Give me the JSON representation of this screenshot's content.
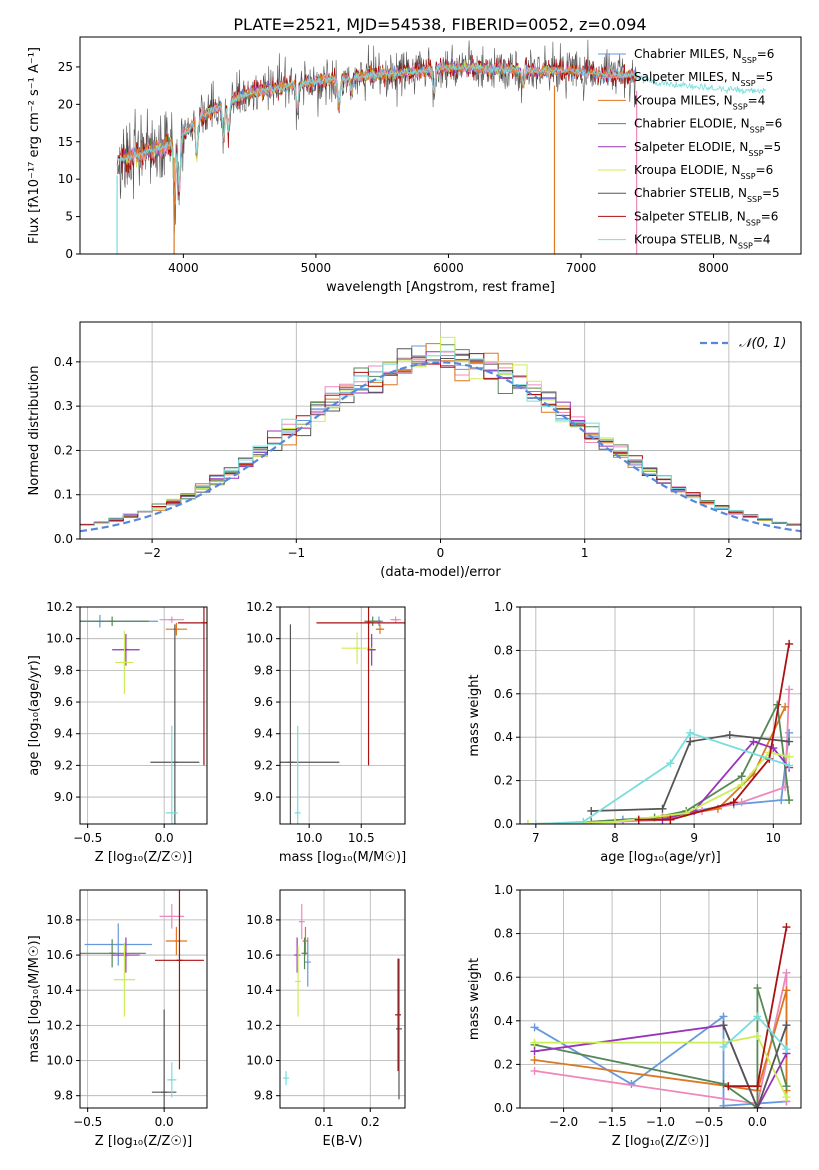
{
  "figure_title": "PLATE=2521, MJD=54538, FIBERID=0052, z=0.094",
  "colors": {
    "Chabrier MILES": "#6699dd",
    "Salpeter MILES": "#ee88bb",
    "Kroupa MILES": "#dd7722",
    "Chabrier ELODIE": "#558855",
    "Salpeter ELODIE": "#9933bb",
    "Kroupa ELODIE": "#ccee55",
    "Chabrier STELIB": "#555555",
    "Salpeter STELIB": "#aa1111",
    "Kroupa STELIB": "#77dddd",
    "normal_curve": "#5588dd"
  },
  "chart_data": [
    {
      "id": "spectrum",
      "type": "line",
      "title": "PLATE=2521, MJD=54538, FIBERID=0052, z=0.094",
      "xlabel": "wavelength [Angstrom, rest frame]",
      "ylabel": "Flux [fλ10⁻¹⁷ erg cm⁻² s⁻¹ A⁻¹]",
      "xlim": [
        3220,
        8660
      ],
      "ylim": [
        0,
        29
      ],
      "xticks": [
        4000,
        5000,
        6000,
        7000,
        8000
      ],
      "yticks": [
        0,
        5,
        10,
        15,
        20,
        25
      ],
      "grid": false,
      "legend_position": "top-right",
      "legend": [
        "Chabrier MILES, N_SSP=6",
        "Salpeter MILES, N_SSP=5",
        "Kroupa MILES, N_SSP=4",
        "Chabrier ELODIE, N_SSP=6",
        "Salpeter ELODIE, N_SSP=5",
        "Kroupa ELODIE, N_SSP=6",
        "Chabrier STELIB, N_SSP=5",
        "Salpeter STELIB, N_SSP=6",
        "Kroupa STELIB, N_SSP=4"
      ],
      "legend_labels": [
        {
          "base": "Chabrier MILES, N",
          "sub": "SSP",
          "tail": "=6"
        },
        {
          "base": "Salpeter MILES, N",
          "sub": "SSP",
          "tail": "=5"
        },
        {
          "base": "Kroupa MILES, N",
          "sub": "SSP",
          "tail": "=4"
        },
        {
          "base": "Chabrier ELODIE, N",
          "sub": "SSP",
          "tail": "=6"
        },
        {
          "base": "Salpeter ELODIE, N",
          "sub": "SSP",
          "tail": "=5"
        },
        {
          "base": "Kroupa ELODIE, N",
          "sub": "SSP",
          "tail": "=6"
        },
        {
          "base": "Chabrier STELIB, N",
          "sub": "SSP",
          "tail": "=5"
        },
        {
          "base": "Salpeter STELIB, N",
          "sub": "SSP",
          "tail": "=6"
        },
        {
          "base": "Kroupa STELIB, N",
          "sub": "SSP",
          "tail": "=4"
        }
      ],
      "continuum_anchors": {
        "wavelength": [
          3500,
          3700,
          3950,
          4100,
          4300,
          4500,
          4800,
          5000,
          5200,
          5500,
          5800,
          6000,
          6300,
          6600,
          6900,
          7200,
          7420,
          7500,
          7800,
          8100,
          8400
        ],
        "flux": [
          12.5,
          13.5,
          15.0,
          18.0,
          20.0,
          21.5,
          22.5,
          23.0,
          23.5,
          24.0,
          24.5,
          25.0,
          24.8,
          24.5,
          24.5,
          24.0,
          23.8,
          23.0,
          22.5,
          22.0,
          21.8
        ]
      },
      "absorption_features": {
        "wavelength": [
          3934,
          3969,
          4102,
          4304,
          4340,
          4861,
          5175,
          5270,
          5890,
          6563
        ],
        "depth": [
          8,
          7,
          5,
          5,
          4,
          3,
          4,
          2,
          3,
          2
        ]
      },
      "spikes": {
        "wavelength": [
          3500,
          3930,
          6800,
          7420
        ],
        "flux": [
          0,
          0,
          0,
          0
        ]
      }
    },
    {
      "id": "residual_hist",
      "type": "histogram",
      "xlabel": "(data-model)/error",
      "ylabel": "Normed distribution",
      "xlim": [
        -2.5,
        2.5
      ],
      "ylim": [
        0,
        0.49
      ],
      "xticks": [
        -2,
        -1,
        0,
        1,
        2
      ],
      "yticks": [
        0.0,
        0.1,
        0.2,
        0.3,
        0.4
      ],
      "grid": true,
      "legend_position": "top-right",
      "legend": [
        "𝒩(0, 1)"
      ],
      "bin_width": 0.1,
      "bin_start": -2.5
    },
    {
      "id": "age_vs_Z",
      "type": "errorbar",
      "xlabel": "Z [log₁₀(Z/Z☉)]",
      "ylabel": "age  [log₁₀(age/yr)]",
      "xlim": [
        -0.55,
        0.28
      ],
      "ylim": [
        8.83,
        10.2
      ],
      "xticks": [
        -0.5,
        0.0
      ],
      "yticks": [
        9.0,
        9.2,
        9.4,
        9.6,
        9.8,
        10.0,
        10.2
      ],
      "grid": true,
      "points": [
        {
          "fit": "Chabrier MILES",
          "x": -0.42,
          "xerr": 0.38,
          "y": 10.11,
          "yerr": 0.04
        },
        {
          "fit": "Salpeter MILES",
          "x": 0.05,
          "xerr": 0.08,
          "y": 10.12,
          "yerr": 0.02
        },
        {
          "fit": "Kroupa MILES",
          "x": 0.08,
          "xerr": 0.07,
          "y": 10.06,
          "yerr": 0.04
        },
        {
          "fit": "Chabrier ELODIE",
          "x": -0.34,
          "xerr": 0.24,
          "y": 10.11,
          "yerr": 0.03
        },
        {
          "fit": "Salpeter ELODIE",
          "x": -0.25,
          "xerr": 0.09,
          "y": 9.93,
          "yerr": 0.1
        },
        {
          "fit": "Kroupa ELODIE",
          "x": -0.26,
          "xerr": 0.06,
          "y": 9.85,
          "yerr": 0.2
        },
        {
          "fit": "Chabrier STELIB",
          "x": 0.07,
          "xerr": 0.16,
          "y": 9.22,
          "yerr": 0.87
        },
        {
          "fit": "Salpeter STELIB",
          "x": 0.26,
          "xerr": 0.17,
          "y": 10.1,
          "yerr": 0.9
        },
        {
          "fit": "Kroupa STELIB",
          "x": 0.05,
          "xerr": 0.04,
          "y": 8.9,
          "yerr": 0.55
        }
      ]
    },
    {
      "id": "age_vs_mass",
      "type": "errorbar",
      "xlabel": "mass [log₁₀(M/M☉)]",
      "ylabel": "",
      "xlim": [
        9.72,
        10.92
      ],
      "ylim": [
        8.83,
        10.2
      ],
      "xticks": [
        10.0,
        10.5
      ],
      "yticks": [
        9.0,
        9.2,
        9.4,
        9.6,
        9.8,
        10.0,
        10.2
      ],
      "grid": true,
      "points": [
        {
          "fit": "Chabrier MILES",
          "x": 10.67,
          "xerr": 0.04,
          "y": 10.11,
          "yerr": 0.03
        },
        {
          "fit": "Salpeter MILES",
          "x": 10.83,
          "xerr": 0.05,
          "y": 10.12,
          "yerr": 0.02
        },
        {
          "fit": "Kroupa MILES",
          "x": 10.68,
          "xerr": 0.04,
          "y": 10.06,
          "yerr": 0.03
        },
        {
          "fit": "Chabrier ELODIE",
          "x": 10.61,
          "xerr": 0.08,
          "y": 10.11,
          "yerr": 0.03
        },
        {
          "fit": "Salpeter ELODIE",
          "x": 10.6,
          "xerr": 0.04,
          "y": 9.93,
          "yerr": 0.1
        },
        {
          "fit": "Kroupa ELODIE",
          "x": 10.46,
          "xerr": 0.15,
          "y": 9.94,
          "yerr": 0.1
        },
        {
          "fit": "Chabrier STELIB",
          "x": 9.82,
          "xerr": 0.47,
          "y": 9.22,
          "yerr": 0.87
        },
        {
          "fit": "Salpeter STELIB",
          "x": 10.57,
          "xerr": 0.5,
          "y": 10.1,
          "yerr": 0.9
        },
        {
          "fit": "Kroupa STELIB",
          "x": 9.89,
          "xerr": 0.02,
          "y": 8.9,
          "yerr": 0.55
        }
      ]
    },
    {
      "id": "weight_vs_age",
      "type": "line",
      "xlabel": "age  [log₁₀(age/yr)]",
      "ylabel": "mass weight",
      "xlim": [
        6.8,
        10.35
      ],
      "ylim": [
        0,
        1.0
      ],
      "xticks": [
        7,
        8,
        9,
        10
      ],
      "yticks": [
        0.0,
        0.2,
        0.4,
        0.6,
        0.8,
        1.0
      ],
      "grid": true,
      "series": [
        {
          "fit": "Chabrier MILES",
          "x": [
            7.7,
            8.1,
            8.6,
            9.0,
            9.5,
            10.1,
            10.2
          ],
          "y": [
            0.01,
            0.02,
            0.03,
            0.06,
            0.09,
            0.11,
            0.42
          ]
        },
        {
          "fit": "Salpeter MILES",
          "x": [
            6.9,
            8.0,
            8.7,
            9.1,
            9.6,
            10.15,
            10.2
          ],
          "y": [
            0.0,
            0.01,
            0.02,
            0.06,
            0.1,
            0.17,
            0.62
          ]
        },
        {
          "fit": "Kroupa MILES",
          "x": [
            7.7,
            8.6,
            9.3,
            9.75,
            10.15
          ],
          "y": [
            0.01,
            0.03,
            0.07,
            0.23,
            0.54
          ]
        },
        {
          "fit": "Chabrier ELODIE",
          "x": [
            7.7,
            8.5,
            8.9,
            9.6,
            10.05,
            10.2
          ],
          "y": [
            0.01,
            0.03,
            0.06,
            0.22,
            0.55,
            0.11
          ]
        },
        {
          "fit": "Salpeter ELODIE",
          "x": [
            8.6,
            9.0,
            9.75,
            10.0,
            10.2
          ],
          "y": [
            0.02,
            0.06,
            0.38,
            0.35,
            0.26
          ]
        },
        {
          "fit": "Kroupa ELODIE",
          "x": [
            6.9,
            8.0,
            8.9,
            9.6,
            9.95,
            10.2
          ],
          "y": [
            0.0,
            0.01,
            0.05,
            0.18,
            0.33,
            0.31
          ]
        },
        {
          "fit": "Chabrier STELIB",
          "x": [
            7.7,
            8.6,
            8.95,
            9.45,
            10.2
          ],
          "y": [
            0.06,
            0.07,
            0.38,
            0.41,
            0.38
          ]
        },
        {
          "fit": "Salpeter STELIB",
          "x": [
            8.3,
            8.7,
            9.5,
            9.95,
            10.2
          ],
          "y": [
            0.02,
            0.02,
            0.1,
            0.3,
            0.83
          ]
        },
        {
          "fit": "Kroupa STELIB",
          "x": [
            7.0,
            7.6,
            8.7,
            8.95,
            10.2
          ],
          "y": [
            0.0,
            0.01,
            0.28,
            0.42,
            0.27
          ]
        }
      ]
    },
    {
      "id": "mass_vs_Z",
      "type": "errorbar",
      "xlabel": "Z [log₁₀(Z/Z☉)]",
      "ylabel": "mass [log₁₀(M/M☉)]",
      "xlim": [
        -0.55,
        0.28
      ],
      "ylim": [
        9.73,
        10.97
      ],
      "xticks": [
        -0.5,
        0.0
      ],
      "yticks": [
        9.8,
        10.0,
        10.2,
        10.4,
        10.6,
        10.8
      ],
      "grid": true,
      "points": [
        {
          "fit": "Chabrier MILES",
          "x": -0.3,
          "xerr": 0.22,
          "y": 10.66,
          "yerr": 0.12
        },
        {
          "fit": "Salpeter MILES",
          "x": 0.05,
          "xerr": 0.08,
          "y": 10.82,
          "yerr": 0.07
        },
        {
          "fit": "Kroupa MILES",
          "x": 0.08,
          "xerr": 0.07,
          "y": 10.68,
          "yerr": 0.08
        },
        {
          "fit": "Chabrier ELODIE",
          "x": -0.34,
          "xerr": 0.22,
          "y": 10.61,
          "yerr": 0.08
        },
        {
          "fit": "Salpeter ELODIE",
          "x": -0.25,
          "xerr": 0.09,
          "y": 10.6,
          "yerr": 0.1
        },
        {
          "fit": "Kroupa ELODIE",
          "x": -0.26,
          "xerr": 0.07,
          "y": 10.46,
          "yerr": 0.21
        },
        {
          "fit": "Chabrier STELIB",
          "x": -0.0,
          "xerr": 0.08,
          "y": 9.82,
          "yerr": 0.47
        },
        {
          "fit": "Salpeter STELIB",
          "x": 0.1,
          "xerr": 0.16,
          "y": 10.57,
          "yerr": 0.62
        },
        {
          "fit": "Kroupa STELIB",
          "x": 0.05,
          "xerr": 0.03,
          "y": 9.89,
          "yerr": 0.1
        }
      ]
    },
    {
      "id": "mass_vs_ebv",
      "type": "errorbar",
      "xlabel": "E(B-V)",
      "ylabel": "",
      "xlim": [
        0.005,
        0.275
      ],
      "ylim": [
        9.73,
        10.97
      ],
      "xticks": [
        0.1,
        0.2
      ],
      "yticks": [
        9.8,
        10.0,
        10.2,
        10.4,
        10.6,
        10.8
      ],
      "grid": true,
      "points": [
        {
          "fit": "Chabrier MILES",
          "x": 0.065,
          "xerr": 0.0,
          "y": 10.56,
          "yerr": 0.14
        },
        {
          "fit": "Salpeter MILES",
          "x": 0.052,
          "xerr": 0.0,
          "y": 10.79,
          "yerr": 0.1
        },
        {
          "fit": "Kroupa MILES",
          "x": 0.06,
          "xerr": 0.0,
          "y": 10.68,
          "yerr": 0.08
        },
        {
          "fit": "Chabrier ELODIE",
          "x": 0.058,
          "xerr": 0.0,
          "y": 10.61,
          "yerr": 0.09
        },
        {
          "fit": "Salpeter ELODIE",
          "x": 0.042,
          "xerr": 0.0,
          "y": 10.6,
          "yerr": 0.1
        },
        {
          "fit": "Kroupa ELODIE",
          "x": 0.044,
          "xerr": 0.0,
          "y": 10.45,
          "yerr": 0.2
        },
        {
          "fit": "Chabrier STELIB",
          "x": 0.262,
          "xerr": 0.0,
          "y": 10.18,
          "yerr": 0.4
        },
        {
          "fit": "Salpeter STELIB",
          "x": 0.26,
          "xerr": 0.0,
          "y": 10.26,
          "yerr": 0.32
        },
        {
          "fit": "Kroupa STELIB",
          "x": 0.018,
          "xerr": 0.0,
          "y": 9.9,
          "yerr": 0.04
        }
      ]
    },
    {
      "id": "weight_vs_Z",
      "type": "line",
      "xlabel": "Z [log₁₀(Z/Z☉)]",
      "ylabel": "mass weight",
      "xlim": [
        -2.45,
        0.45
      ],
      "ylim": [
        0,
        1.0
      ],
      "xticks": [
        -2.0,
        -1.5,
        -1.0,
        -0.5,
        0.0
      ],
      "yticks": [
        0.0,
        0.2,
        0.4,
        0.6,
        0.8,
        1.0
      ],
      "grid": true,
      "series": [
        {
          "fit": "Chabrier MILES",
          "x": [
            -2.3,
            -1.3,
            -0.35,
            -0.35,
            0.3
          ],
          "y": [
            0.37,
            0.11,
            0.42,
            0.01,
            0.03
          ]
        },
        {
          "fit": "Salpeter MILES",
          "x": [
            -2.3,
            0.0,
            0.3,
            0.3
          ],
          "y": [
            0.17,
            0.02,
            0.62,
            0.03
          ]
        },
        {
          "fit": "Kroupa MILES",
          "x": [
            -2.3,
            -0.3,
            0.0,
            0.3,
            0.3
          ],
          "y": [
            0.22,
            0.1,
            0.08,
            0.54,
            0.08
          ]
        },
        {
          "fit": "Chabrier ELODIE",
          "x": [
            -2.3,
            -0.35,
            0.0,
            0.0,
            0.3
          ],
          "y": [
            0.29,
            0.11,
            0.0,
            0.55,
            0.1
          ]
        },
        {
          "fit": "Salpeter ELODIE",
          "x": [
            -2.3,
            -0.35,
            0.0,
            0.3
          ],
          "y": [
            0.26,
            0.38,
            0.0,
            0.25
          ]
        },
        {
          "fit": "Kroupa ELODIE",
          "x": [
            -2.3,
            -0.35,
            0.0,
            0.3
          ],
          "y": [
            0.3,
            0.3,
            0.33,
            0.05
          ]
        },
        {
          "fit": "Chabrier STELIB",
          "x": [
            -0.35,
            0.0,
            0.3
          ],
          "y": [
            0.38,
            0.0,
            0.38
          ]
        },
        {
          "fit": "Salpeter STELIB",
          "x": [
            -0.3,
            0.0,
            0.3
          ],
          "y": [
            0.1,
            0.1,
            0.83
          ]
        },
        {
          "fit": "Kroupa STELIB",
          "x": [
            -0.35,
            0.0,
            0.3
          ],
          "y": [
            0.28,
            0.42,
            0.27
          ]
        }
      ]
    }
  ]
}
